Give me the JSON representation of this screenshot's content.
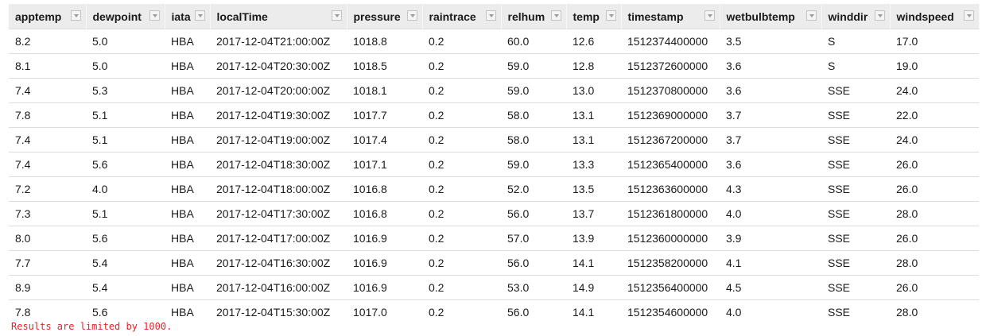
{
  "table": {
    "columns": [
      "apptemp",
      "dewpoint",
      "iata",
      "localTime",
      "pressure",
      "raintrace",
      "relhum",
      "temp",
      "timestamp",
      "wetbulbtemp",
      "winddir",
      "windspeed"
    ],
    "sort_icon": "chevron-down-icon",
    "rows": [
      [
        "8.2",
        "5.0",
        "HBA",
        "2017-12-04T21:00:00Z",
        "1018.8",
        "0.2",
        "60.0",
        "12.6",
        "1512374400000",
        "3.5",
        "S",
        "17.0"
      ],
      [
        "8.1",
        "5.0",
        "HBA",
        "2017-12-04T20:30:00Z",
        "1018.5",
        "0.2",
        "59.0",
        "12.8",
        "1512372600000",
        "3.6",
        "S",
        "19.0"
      ],
      [
        "7.4",
        "5.3",
        "HBA",
        "2017-12-04T20:00:00Z",
        "1018.1",
        "0.2",
        "59.0",
        "13.0",
        "1512370800000",
        "3.6",
        "SSE",
        "24.0"
      ],
      [
        "7.8",
        "5.1",
        "HBA",
        "2017-12-04T19:30:00Z",
        "1017.7",
        "0.2",
        "58.0",
        "13.1",
        "1512369000000",
        "3.7",
        "SSE",
        "22.0"
      ],
      [
        "7.4",
        "5.1",
        "HBA",
        "2017-12-04T19:00:00Z",
        "1017.4",
        "0.2",
        "58.0",
        "13.1",
        "1512367200000",
        "3.7",
        "SSE",
        "24.0"
      ],
      [
        "7.4",
        "5.6",
        "HBA",
        "2017-12-04T18:30:00Z",
        "1017.1",
        "0.2",
        "59.0",
        "13.3",
        "1512365400000",
        "3.6",
        "SSE",
        "26.0"
      ],
      [
        "7.2",
        "4.0",
        "HBA",
        "2017-12-04T18:00:00Z",
        "1016.8",
        "0.2",
        "52.0",
        "13.5",
        "1512363600000",
        "4.3",
        "SSE",
        "26.0"
      ],
      [
        "7.3",
        "5.1",
        "HBA",
        "2017-12-04T17:30:00Z",
        "1016.8",
        "0.2",
        "56.0",
        "13.7",
        "1512361800000",
        "4.0",
        "SSE",
        "28.0"
      ],
      [
        "8.0",
        "5.6",
        "HBA",
        "2017-12-04T17:00:00Z",
        "1016.9",
        "0.2",
        "57.0",
        "13.9",
        "1512360000000",
        "3.9",
        "SSE",
        "26.0"
      ],
      [
        "7.7",
        "5.4",
        "HBA",
        "2017-12-04T16:30:00Z",
        "1016.9",
        "0.2",
        "56.0",
        "14.1",
        "1512358200000",
        "4.1",
        "SSE",
        "28.0"
      ],
      [
        "8.9",
        "5.4",
        "HBA",
        "2017-12-04T16:00:00Z",
        "1016.9",
        "0.2",
        "53.0",
        "14.9",
        "1512356400000",
        "4.5",
        "SSE",
        "26.0"
      ],
      [
        "7.8",
        "5.6",
        "HBA",
        "2017-12-04T15:30:00Z",
        "1017.0",
        "0.2",
        "56.0",
        "14.1",
        "1512354600000",
        "4.0",
        "SSE",
        "28.0"
      ]
    ]
  },
  "footer": {
    "limit_message": "Results are limited by 1000."
  },
  "colors": {
    "header_bg": "#ececec",
    "row_border": "#dcdcdc",
    "warning_text": "#e0262b"
  }
}
